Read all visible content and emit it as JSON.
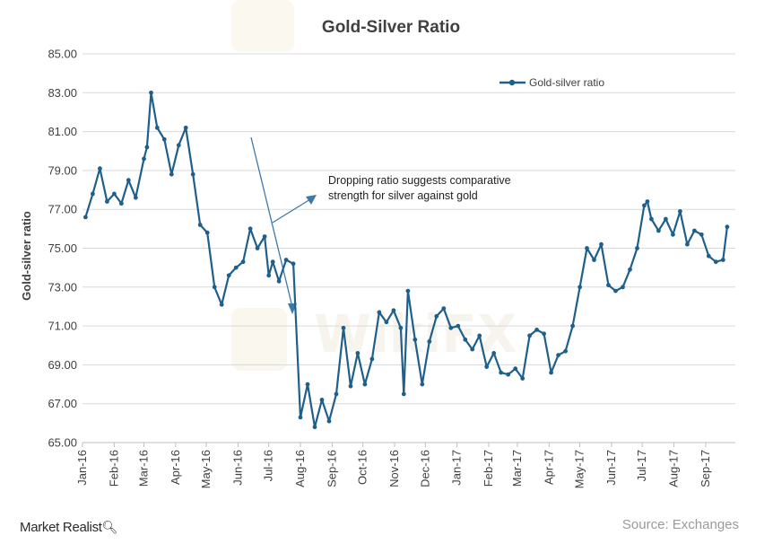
{
  "brand": {
    "name": "Market Realist",
    "icon": "magnifier-icon"
  },
  "source": "Source: Exchanges",
  "colors": {
    "series": "#1f5f8b",
    "grid": "#d9d9d9",
    "arrow": "#3f78a8",
    "text": "#404040"
  },
  "chart_data": {
    "type": "line",
    "title": "Gold-Silver Ratio",
    "xlabel": "",
    "ylabel": "Gold-silver ratio",
    "ylim": [
      65,
      85
    ],
    "yticks": [
      "65.00",
      "67.00",
      "69.00",
      "71.00",
      "73.00",
      "75.00",
      "77.00",
      "79.00",
      "81.00",
      "83.00",
      "85.00"
    ],
    "xticks": [
      "Jan-16",
      "Feb-16",
      "Mar-16",
      "Apr-16",
      "May-16",
      "Jun-16",
      "Jul-16",
      "Aug-16",
      "Sep-16",
      "Oct-16",
      "Nov-16",
      "Dec-16",
      "Jan-17",
      "Feb-17",
      "Mar-17",
      "Apr-17",
      "May-17",
      "Jun-17",
      "Jul-17",
      "Aug-17",
      "Sep-17"
    ],
    "grid": true,
    "legend": {
      "position": "top-right"
    },
    "annotation": {
      "lines": [
        "Dropping ratio suggests comparative",
        "strength for silver against gold"
      ],
      "arrows": "two arrows indicating downward trend"
    },
    "series": [
      {
        "name": "Gold-silver ratio",
        "x": [
          "2016-01-04",
          "2016-01-11",
          "2016-01-18",
          "2016-01-25",
          "2016-02-01",
          "2016-02-08",
          "2016-02-15",
          "2016-02-22",
          "2016-03-01",
          "2016-03-04",
          "2016-03-08",
          "2016-03-14",
          "2016-03-21",
          "2016-03-28",
          "2016-04-04",
          "2016-04-11",
          "2016-04-18",
          "2016-04-25",
          "2016-05-02",
          "2016-05-09",
          "2016-05-16",
          "2016-05-23",
          "2016-05-30",
          "2016-06-06",
          "2016-06-13",
          "2016-06-20",
          "2016-06-27",
          "2016-07-01",
          "2016-07-05",
          "2016-07-11",
          "2016-07-18",
          "2016-07-25",
          "2016-08-01",
          "2016-08-08",
          "2016-08-15",
          "2016-08-22",
          "2016-08-29",
          "2016-09-05",
          "2016-09-12",
          "2016-09-19",
          "2016-09-26",
          "2016-10-03",
          "2016-10-10",
          "2016-10-17",
          "2016-10-24",
          "2016-10-31",
          "2016-11-07",
          "2016-11-10",
          "2016-11-14",
          "2016-11-21",
          "2016-11-28",
          "2016-12-05",
          "2016-12-12",
          "2016-12-19",
          "2016-12-26",
          "2017-01-02",
          "2017-01-09",
          "2017-01-16",
          "2017-01-23",
          "2017-01-30",
          "2017-02-06",
          "2017-02-13",
          "2017-02-20",
          "2017-02-27",
          "2017-03-06",
          "2017-03-13",
          "2017-03-20",
          "2017-03-27",
          "2017-04-03",
          "2017-04-10",
          "2017-04-17",
          "2017-04-24",
          "2017-05-01",
          "2017-05-08",
          "2017-05-15",
          "2017-05-22",
          "2017-05-29",
          "2017-06-05",
          "2017-06-12",
          "2017-06-19",
          "2017-06-26",
          "2017-07-03",
          "2017-07-06",
          "2017-07-10",
          "2017-07-17",
          "2017-07-24",
          "2017-07-31",
          "2017-08-07",
          "2017-08-14",
          "2017-08-21",
          "2017-08-28",
          "2017-09-04",
          "2017-09-11",
          "2017-09-18",
          "2017-09-22"
        ],
        "values": [
          76.6,
          77.8,
          79.1,
          77.4,
          77.8,
          77.3,
          78.5,
          77.6,
          79.6,
          80.2,
          83.0,
          81.2,
          80.6,
          78.8,
          80.3,
          81.2,
          78.8,
          76.2,
          75.8,
          73.0,
          72.1,
          73.6,
          74.0,
          74.3,
          76.0,
          75.0,
          75.6,
          73.6,
          74.3,
          73.3,
          74.4,
          74.2,
          66.3,
          68.0,
          65.8,
          67.2,
          66.1,
          67.5,
          70.9,
          67.9,
          69.6,
          68.0,
          69.3,
          71.7,
          71.2,
          71.8,
          70.9,
          67.5,
          72.8,
          70.3,
          68.0,
          70.2,
          71.5,
          71.9,
          70.9,
          71.0,
          70.3,
          69.8,
          70.5,
          68.9,
          69.6,
          68.6,
          68.5,
          68.8,
          68.3,
          70.5,
          70.8,
          70.6,
          68.6,
          69.5,
          69.7,
          71.0,
          73.0,
          75.0,
          74.4,
          75.2,
          73.1,
          72.8,
          73.0,
          73.9,
          75.0,
          77.2,
          77.4,
          76.5,
          75.9,
          76.5,
          75.7,
          76.9,
          75.2,
          75.9,
          75.7,
          74.6,
          74.3,
          74.4,
          76.1
        ]
      }
    ]
  }
}
